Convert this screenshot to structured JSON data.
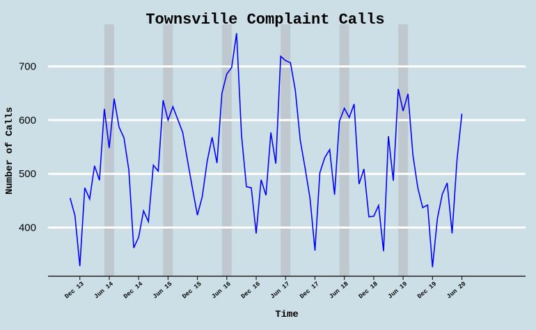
{
  "chart_data": {
    "type": "line",
    "title": "Townsville Complaint Calls",
    "xlabel": "Time",
    "ylabel": "Number of Calls",
    "ylim": [
      310,
      785
    ],
    "xlim": [
      -6.5,
      91
    ],
    "grid": "horizontal",
    "yticks": [
      400,
      500,
      600,
      700
    ],
    "xticks": [
      {
        "label": "Dec 13",
        "x": 0
      },
      {
        "label": "Jun 14",
        "x": 6
      },
      {
        "label": "Dec 14",
        "x": 12
      },
      {
        "label": "Jun 15",
        "x": 18
      },
      {
        "label": "Dec 15",
        "x": 24
      },
      {
        "label": "Jun 16",
        "x": 30
      },
      {
        "label": "Dec 16",
        "x": 36
      },
      {
        "label": "Jun 17",
        "x": 42
      },
      {
        "label": "Dec 17",
        "x": 48
      },
      {
        "label": "Jun 18",
        "x": 54
      },
      {
        "label": "Dec 18",
        "x": 60
      },
      {
        "label": "Jun 19",
        "x": 66
      },
      {
        "label": "Dec 19",
        "x": 72
      },
      {
        "label": "Jun 20",
        "x": 78
      }
    ],
    "shaded_spans": [
      [
        5,
        7
      ],
      [
        17,
        19
      ],
      [
        29,
        31
      ],
      [
        41,
        43
      ],
      [
        53,
        55
      ],
      [
        65,
        67
      ]
    ],
    "line_color": "#0000ff",
    "span_color": "#bfc8cf",
    "series": [
      {
        "x": [
          -2,
          -1,
          0,
          1,
          2,
          3,
          4,
          5,
          6,
          7,
          8,
          9,
          10,
          11,
          12,
          13,
          14,
          15,
          16,
          17,
          18,
          19,
          20,
          21,
          22,
          23,
          24,
          25,
          26,
          27,
          28,
          29,
          30,
          31,
          32,
          33,
          34,
          35,
          36,
          37,
          38,
          39,
          40,
          41,
          42,
          43,
          44,
          45,
          46,
          47,
          48,
          49,
          50,
          51,
          52,
          53,
          54,
          55,
          56,
          57,
          58,
          59,
          60,
          61,
          62,
          63,
          64,
          65,
          66,
          67,
          68,
          69,
          70,
          71,
          72,
          73,
          74,
          75,
          76,
          77,
          78
        ],
        "values": [
          455,
          422,
          328,
          474,
          453,
          515,
          488,
          621,
          548,
          640,
          587,
          567,
          507,
          362,
          382,
          431,
          411,
          516,
          505,
          637,
          600,
          625,
          601,
          577,
          524,
          472,
          423,
          458,
          524,
          568,
          520,
          650,
          686,
          698,
          762,
          573,
          476,
          474,
          389,
          489,
          460,
          577,
          519,
          719,
          711,
          707,
          655,
          563,
          510,
          454,
          357,
          502,
          530,
          545,
          461,
          598,
          622,
          605,
          630,
          481,
          509,
          420,
          421,
          441,
          356,
          570,
          487,
          658,
          617,
          649,
          535,
          474,
          437,
          442,
          326,
          417,
          462,
          483,
          389,
          526,
          612
        ]
      }
    ]
  }
}
